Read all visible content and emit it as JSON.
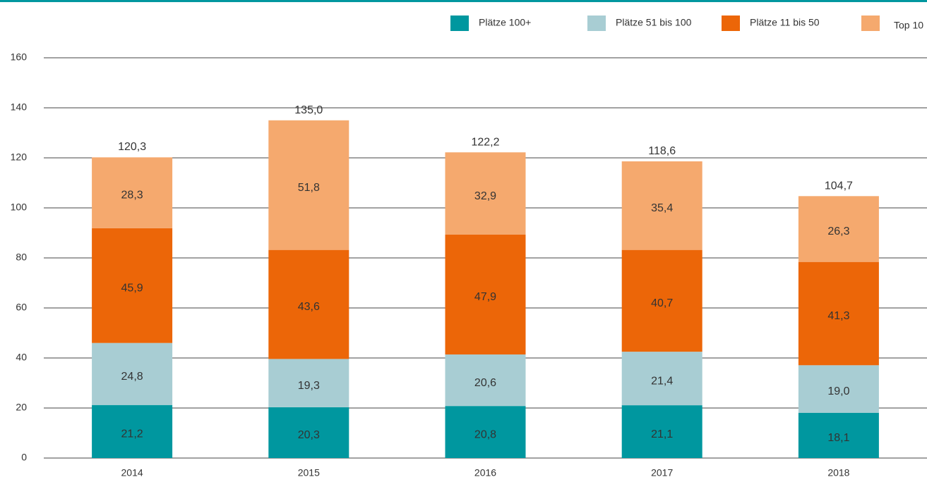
{
  "chart_data": {
    "type": "stacked_bar",
    "categories": [
      "2014",
      "2015",
      "2016",
      "2017",
      "2018"
    ],
    "series": [
      {
        "name": "Plätze 100+",
        "color": "#00979f",
        "values": [
          21.2,
          20.3,
          20.8,
          21.1,
          18.1
        ],
        "value_labels": [
          "21,2",
          "20,3",
          "20,8",
          "21,1",
          "18,1"
        ]
      },
      {
        "name": "Plätze 51 bis 100",
        "color": "#a8cdd3",
        "values": [
          24.8,
          19.3,
          20.6,
          21.4,
          19.0
        ],
        "value_labels": [
          "24,8",
          "19,3",
          "20,6",
          "21,4",
          "19,0"
        ]
      },
      {
        "name": "Plätze 11 bis 50",
        "color": "#ec6608",
        "values": [
          45.9,
          43.6,
          47.9,
          40.7,
          41.3
        ],
        "value_labels": [
          "45,9",
          "43,6",
          "47,9",
          "40,7",
          "41,3"
        ]
      },
      {
        "name": "Top 10",
        "color": "#f5a96e",
        "values": [
          28.3,
          51.8,
          32.9,
          35.4,
          26.3
        ],
        "value_labels": [
          "28,3",
          "51,8",
          "32,9",
          "35,4",
          "26,3"
        ]
      }
    ],
    "totals": [
      120.3,
      135.0,
      122.2,
      118.6,
      104.7
    ],
    "total_labels": [
      "120,3",
      "135,0",
      "122,2",
      "118,6",
      "104,7"
    ],
    "ylim": [
      0,
      160
    ],
    "yticks": [
      0,
      20,
      40,
      60,
      80,
      100,
      120,
      140,
      160
    ],
    "grid": true,
    "legend": "top-right"
  }
}
